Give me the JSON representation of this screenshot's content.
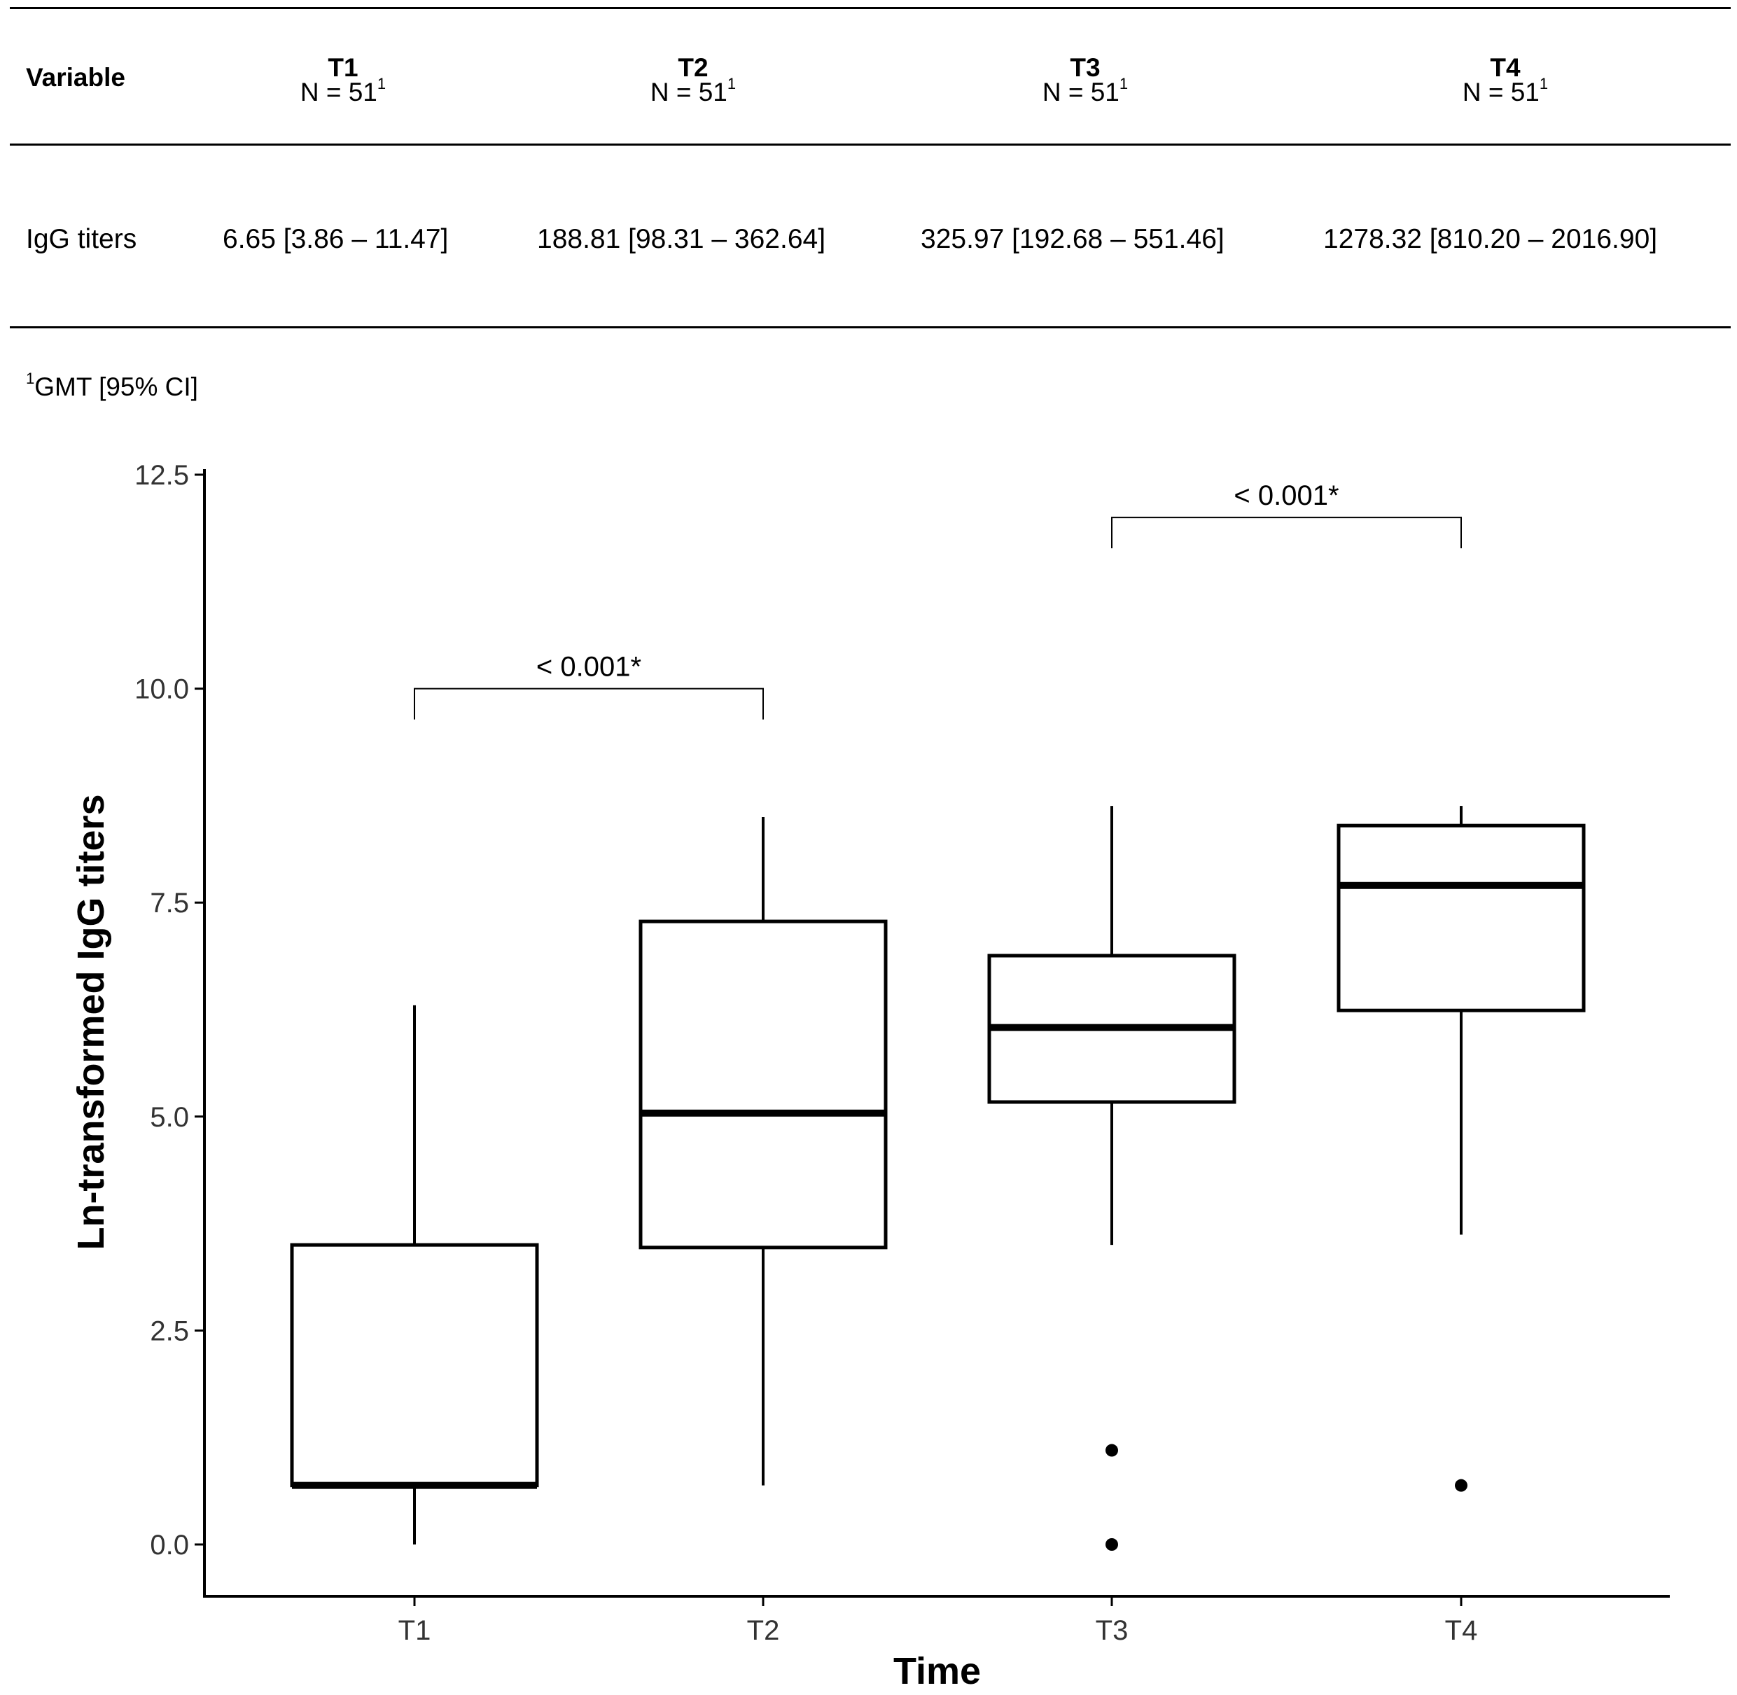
{
  "table": {
    "header": {
      "variable": "Variable",
      "columns": [
        {
          "name": "T1",
          "n": "N = 51",
          "sup": "1"
        },
        {
          "name": "T2",
          "n": "N = 51",
          "sup": "1"
        },
        {
          "name": "T3",
          "n": "N = 51",
          "sup": "1"
        },
        {
          "name": "T4",
          "n": "N = 51",
          "sup": "1"
        }
      ]
    },
    "row": {
      "label": "IgG titers",
      "values": [
        "6.65 [3.86 – 11.47]",
        "188.81 [98.31 – 362.64]",
        "325.97 [192.68 – 551.46]",
        "1278.32 [810.20 – 2016.90]"
      ]
    },
    "footnote": {
      "sup": "1",
      "text": "GMT [95% CI]"
    }
  },
  "chart_data": {
    "type": "boxplot",
    "xlabel": "Time",
    "ylabel": "Ln-transformed IgG titers",
    "categories": [
      "T1",
      "T2",
      "T3",
      "T4"
    ],
    "ylim": [
      -0.25,
      12.5
    ],
    "yticks": [
      "0.0",
      "2.5",
      "5.0",
      "7.5",
      "10.0",
      "12.5"
    ],
    "boxes": [
      {
        "name": "T1",
        "whisker_low": 0.0,
        "q1": 0.69,
        "median": 0.69,
        "q3": 3.5,
        "whisker_high": 6.3,
        "outliers": []
      },
      {
        "name": "T2",
        "whisker_low": 0.69,
        "q1": 3.47,
        "median": 5.04,
        "q3": 7.28,
        "whisker_high": 8.5,
        "outliers": []
      },
      {
        "name": "T3",
        "whisker_low": 3.5,
        "q1": 5.17,
        "median": 6.04,
        "q3": 6.88,
        "whisker_high": 8.63,
        "outliers": [
          1.1,
          0.0
        ]
      },
      {
        "name": "T4",
        "whisker_low": 3.62,
        "q1": 6.24,
        "median": 7.7,
        "q3": 8.4,
        "whisker_high": 8.63,
        "outliers": [
          0.69
        ]
      }
    ],
    "comparisons": [
      {
        "from": "T1",
        "to": "T2",
        "y": 10.0,
        "label": "< 0.001*"
      },
      {
        "from": "T3",
        "to": "T4",
        "y": 12.0,
        "label": "< 0.001*"
      }
    ]
  }
}
